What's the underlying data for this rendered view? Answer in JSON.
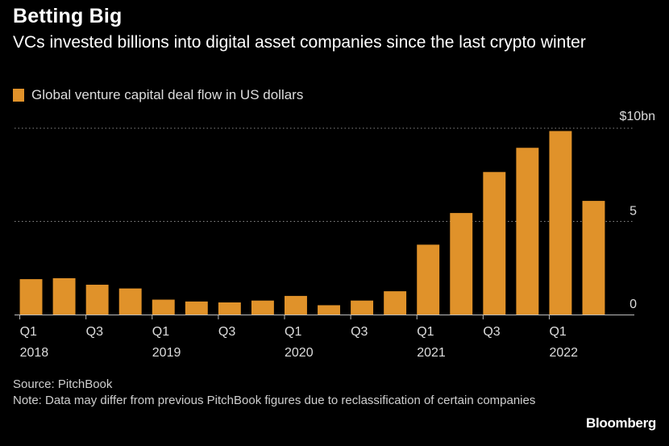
{
  "header": {
    "title": "Betting Big",
    "subtitle": "VCs invested billions into digital asset companies since the last crypto winter"
  },
  "legend": {
    "label": "Global venture capital deal flow in US dollars",
    "color": "#e0922a"
  },
  "footer": {
    "source": "Source: PitchBook",
    "note": "Note: Data may differ from previous PitchBook figures due to reclassification of certain companies",
    "brand": "Bloomberg"
  },
  "chart_data": {
    "type": "bar",
    "categories": [
      "Q1 2018",
      "Q2 2018",
      "Q3 2018",
      "Q4 2018",
      "Q1 2019",
      "Q2 2019",
      "Q3 2019",
      "Q4 2019",
      "Q1 2020",
      "Q2 2020",
      "Q3 2020",
      "Q4 2020",
      "Q1 2021",
      "Q2 2021",
      "Q3 2021",
      "Q4 2021",
      "Q1 2022",
      "Q2 2022"
    ],
    "series": [
      {
        "name": "Global venture capital deal flow in US dollars",
        "values": [
          1.9,
          1.95,
          1.6,
          1.4,
          0.8,
          0.7,
          0.65,
          0.75,
          1.0,
          0.5,
          0.75,
          1.25,
          3.75,
          5.45,
          7.65,
          8.95,
          9.85,
          6.1
        ]
      }
    ],
    "ylim": [
      0,
      10
    ],
    "yticks": [
      {
        "value": 0,
        "label": "0"
      },
      {
        "value": 5,
        "label": "5"
      },
      {
        "value": 10,
        "label": "$10bn"
      }
    ],
    "xticks": [
      {
        "index": 0,
        "quarter": "Q1",
        "year": "2018"
      },
      {
        "index": 2,
        "quarter": "Q3",
        "year": ""
      },
      {
        "index": 4,
        "quarter": "Q1",
        "year": "2019"
      },
      {
        "index": 6,
        "quarter": "Q3",
        "year": ""
      },
      {
        "index": 8,
        "quarter": "Q1",
        "year": "2020"
      },
      {
        "index": 10,
        "quarter": "Q3",
        "year": ""
      },
      {
        "index": 12,
        "quarter": "Q1",
        "year": "2021"
      },
      {
        "index": 14,
        "quarter": "Q3",
        "year": ""
      },
      {
        "index": 16,
        "quarter": "Q1",
        "year": "2022"
      }
    ],
    "grid": true,
    "y_axis_side": "right",
    "legend_position": "top-left",
    "bar_color": "#e0922a"
  }
}
